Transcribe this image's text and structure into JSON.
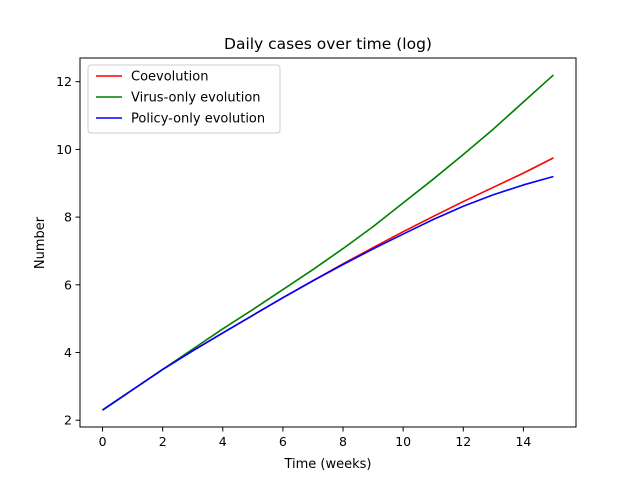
{
  "chart_data": {
    "type": "line",
    "title": "Daily cases over time (log)",
    "xlabel": "Time (weeks)",
    "ylabel": "Number",
    "xlim": [
      -0.75,
      15.75
    ],
    "ylim": [
      1.8,
      12.7
    ],
    "xticks": [
      0,
      2,
      4,
      6,
      8,
      10,
      12,
      14
    ],
    "yticks": [
      2,
      4,
      6,
      8,
      10,
      12
    ],
    "grid": false,
    "legend_position": "top-left",
    "x": [
      0,
      1,
      2,
      3,
      4,
      5,
      6,
      7,
      8,
      9,
      10,
      11,
      12,
      13,
      14,
      15
    ],
    "series": [
      {
        "name": "Coevolution",
        "color": "#ff0000",
        "values": [
          2.3,
          2.9,
          3.5,
          4.05,
          4.58,
          5.1,
          5.62,
          6.12,
          6.62,
          7.1,
          7.57,
          8.02,
          8.46,
          8.88,
          9.3,
          9.75
        ]
      },
      {
        "name": "Virus-only evolution",
        "color": "#008000",
        "values": [
          2.3,
          2.9,
          3.5,
          4.1,
          4.7,
          5.27,
          5.86,
          6.45,
          7.07,
          7.72,
          8.42,
          9.12,
          9.85,
          10.6,
          11.4,
          12.2
        ]
      },
      {
        "name": "Policy-only evolution",
        "color": "#0000ff",
        "values": [
          2.3,
          2.9,
          3.5,
          4.05,
          4.58,
          5.1,
          5.62,
          6.12,
          6.6,
          7.06,
          7.5,
          7.93,
          8.32,
          8.66,
          8.95,
          9.2
        ]
      }
    ]
  }
}
